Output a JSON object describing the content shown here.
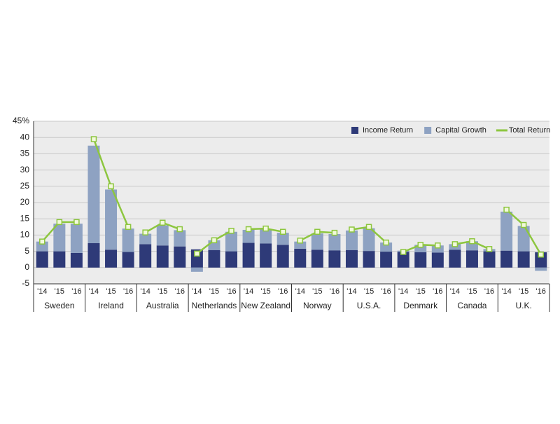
{
  "chart_data": {
    "type": "bar",
    "groups": [
      "Sweden",
      "Ireland",
      "Australia",
      "Netherlands",
      "New Zealand",
      "Norway",
      "U.S.A.",
      "Denmark",
      "Canada",
      "U.K."
    ],
    "categories": [
      "'14",
      "'15",
      "'16",
      "'14",
      "'15",
      "'16",
      "'14",
      "'15",
      "'16",
      "'14",
      "'15",
      "'16",
      "'14",
      "'15",
      "'16",
      "'14",
      "'15",
      "'16",
      "'14",
      "'15",
      "'16",
      "'14",
      "'15",
      "'16",
      "'14",
      "'15",
      "'16",
      "'14",
      "'15",
      "'16"
    ],
    "series": [
      {
        "name": "Income Return",
        "color": "#2e3a78",
        "stack": true,
        "values": [
          5,
          5,
          4.5,
          7.5,
          5.5,
          4.8,
          7.2,
          6.8,
          6.5,
          5.6,
          5.4,
          5,
          7.6,
          7.4,
          7,
          5.8,
          5.5,
          5.3,
          5.4,
          5.1,
          4.9,
          4.8,
          4.7,
          4.6,
          5.5,
          5.3,
          5,
          5.2,
          5,
          4.7
        ]
      },
      {
        "name": "Capital Growth",
        "color": "#8ea2c2",
        "stack": true,
        "values": [
          3,
          8.5,
          9,
          30,
          18.5,
          7.2,
          3.2,
          6.2,
          5,
          -1.3,
          3,
          6,
          4,
          4.4,
          3.7,
          2.2,
          5,
          5,
          6,
          7,
          2.8,
          0.4,
          2.3,
          2.2,
          1.7,
          2.8,
          0.7,
          12,
          7.8,
          -1
        ]
      },
      {
        "name": "Total Return",
        "color": "#8dc63f",
        "type": "line",
        "values": [
          8,
          14,
          14,
          39.5,
          25,
          12.5,
          10.8,
          13.8,
          11.8,
          4.3,
          8.4,
          11.3,
          11.8,
          12,
          11,
          8.3,
          11,
          10.7,
          11.7,
          12.5,
          7.7,
          4.8,
          7,
          6.8,
          7.2,
          8.1,
          5.7,
          17.8,
          13.1,
          4
        ]
      }
    ],
    "ylim": [
      -5,
      45
    ],
    "yticks": [
      -5,
      0,
      5,
      10,
      15,
      20,
      25,
      30,
      35,
      {
        "value": 40,
        "label": "40"
      },
      {
        "value": 45,
        "label": "45%"
      }
    ],
    "grid": true
  }
}
